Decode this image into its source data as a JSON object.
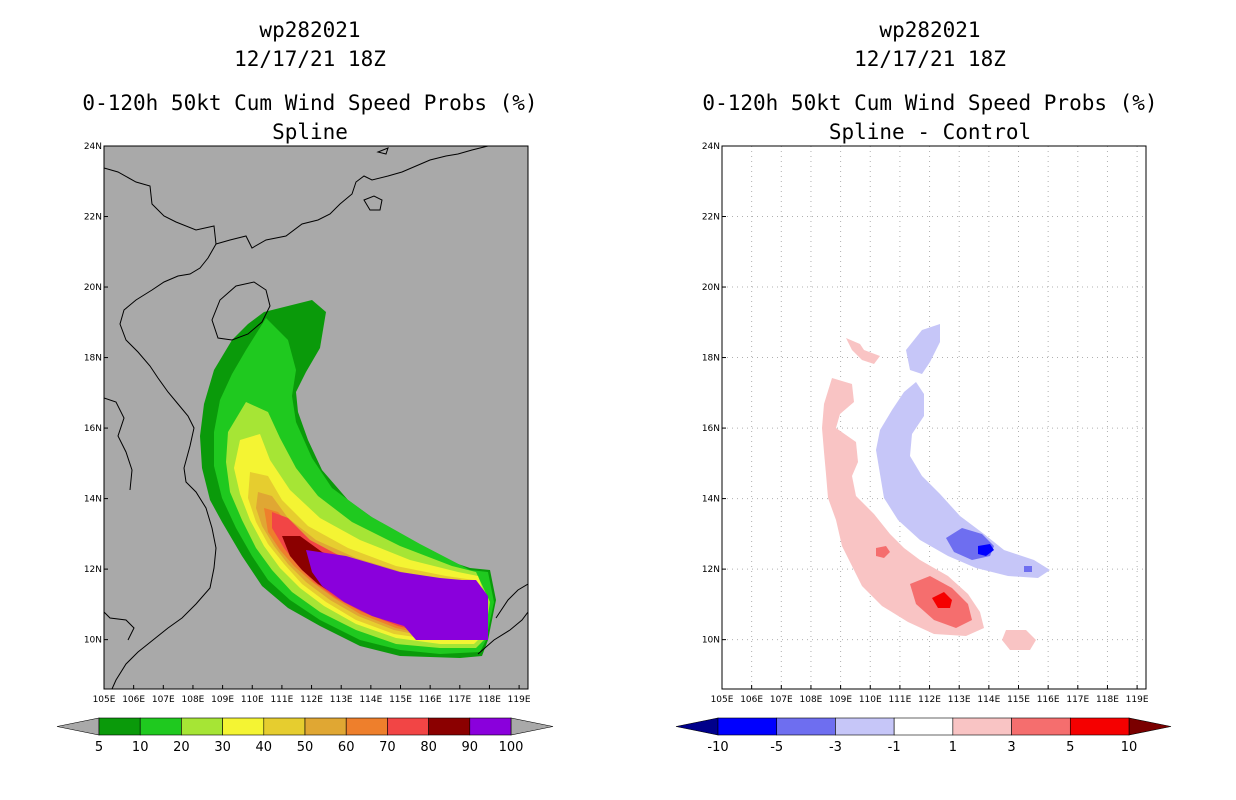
{
  "panels": [
    {
      "id": "left",
      "storm": "wp282021",
      "datetime": "12/17/21 18Z",
      "product": "0-120h 50kt Cum Wind Speed Probs (%)",
      "subtitle": "Spline",
      "legend": {
        "labels": [
          "5",
          "10",
          "20",
          "30",
          "40",
          "50",
          "60",
          "70",
          "80",
          "90",
          "100"
        ],
        "colors": [
          "#0a9a0a",
          "#1fc91f",
          "#a6e535",
          "#f4f433",
          "#e6cd2f",
          "#e0a733",
          "#ee7f2c",
          "#f24545",
          "#8b0000",
          "#8a00dc"
        ]
      }
    },
    {
      "id": "right",
      "storm": "wp282021",
      "datetime": "12/17/21 18Z",
      "product": "0-120h 50kt Cum Wind Speed Probs (%)",
      "subtitle": "Spline - Control",
      "legend": {
        "labels": [
          "-10",
          "-5",
          "-3",
          "-1",
          "1",
          "3",
          "5",
          "10"
        ],
        "colors": [
          "#0000ff",
          "#6e6ef0",
          "#c6c6f8",
          "#ffffff",
          "#f9c4c4",
          "#f56e6e",
          "#f50000"
        ]
      }
    }
  ],
  "axes": {
    "x_ticks": [
      "105E",
      "106E",
      "107E",
      "108E",
      "109E",
      "110E",
      "111E",
      "112E",
      "113E",
      "114E",
      "115E",
      "116E",
      "117E",
      "118E",
      "119E"
    ],
    "y_ticks": [
      "10N",
      "12N",
      "14N",
      "16N",
      "18N",
      "20N",
      "22N",
      "24N"
    ],
    "lon_range": [
      105,
      119.3
    ],
    "lat_range": [
      8.6,
      24
    ]
  },
  "colors": {
    "land_bg": "#a9a9a9",
    "ocean_bg": "#ffffff"
  }
}
